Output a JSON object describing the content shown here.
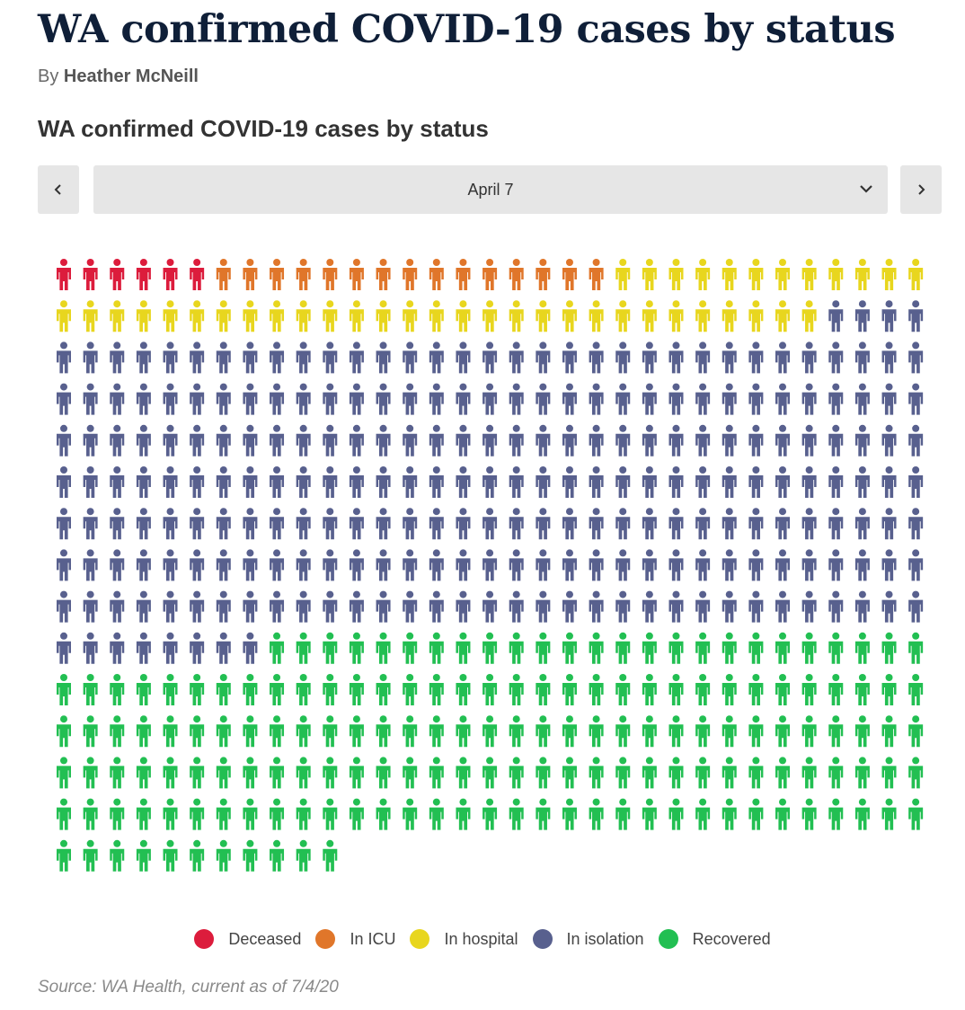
{
  "headline": "WA confirmed COVID-19 cases by status",
  "byline": {
    "prefix": "By",
    "author": "Heather McNeill"
  },
  "controls": {
    "selected_date": "April 7",
    "prev_icon": "chevron-left-icon",
    "next_icon": "chevron-right-icon",
    "dropdown_icon": "chevron-down-icon"
  },
  "chart_data": {
    "type": "waffle",
    "title": "WA confirmed COVID-19 cases by status",
    "icon": "person-icon",
    "categories": [
      "Deceased",
      "In ICU",
      "In hospital",
      "In isolation",
      "Recovered"
    ],
    "values": [
      6,
      15,
      41,
      243,
      168
    ],
    "total": 473,
    "columns": 33,
    "colors": {
      "Deceased": "#dc1c3c",
      "In ICU": "#e0762a",
      "In hospital": "#e8d61e",
      "In isolation": "#58608e",
      "Recovered": "#22bf52"
    },
    "legend_position": "bottom-center"
  },
  "legend": [
    {
      "label": "Deceased",
      "color": "#dc1c3c"
    },
    {
      "label": "In ICU",
      "color": "#e0762a"
    },
    {
      "label": "In hospital",
      "color": "#e8d61e"
    },
    {
      "label": "In isolation",
      "color": "#58608e"
    },
    {
      "label": "Recovered",
      "color": "#22bf52"
    }
  ],
  "source": "Source: WA Health, current as of 7/4/20"
}
